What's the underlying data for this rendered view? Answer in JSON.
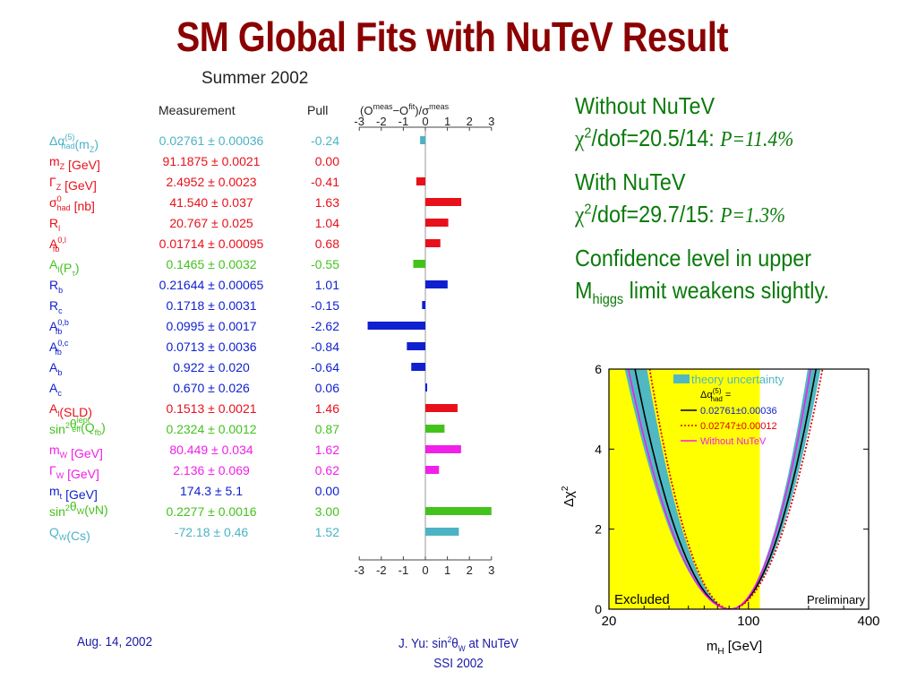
{
  "slide": {
    "title": "SM Global Fits with NuTeV Result",
    "footer_date": "Aug. 14, 2002",
    "footer_center_line1_pre": "J. Yu: sin",
    "footer_center_line1_sup": "2",
    "footer_center_line1_theta": "θ",
    "footer_center_line1_sub": "W",
    "footer_center_line1_post": " at NuTeV",
    "footer_center_line2": "SSI 2002"
  },
  "notes": {
    "without_label": "Without NuTeV",
    "without_chi": "χ",
    "without_sup": "2",
    "without_dof": "/dof=20.5/14: ",
    "without_p": "P=11.4%",
    "with_label": "With NuTeV",
    "with_chi": "χ",
    "with_sup": "2",
    "with_dof": "/dof=29.7/15: ",
    "with_p": "P=1.3%",
    "conf_line1": "Confidence level in upper",
    "conf_m": "M",
    "conf_sub": "higgs",
    "conf_line2": " limit weakens slightly."
  },
  "colors": {
    "title": "#8b0000",
    "notes": "#0b7a0b",
    "cyan": "#4cb3c4",
    "red": "#e8101a",
    "green": "#44c21c",
    "blue": "#1020d0",
    "magenta": "#f020e8",
    "yellow": "#ffff00",
    "teal_band": "#4fb8c2"
  },
  "chart_data": [
    {
      "type": "bar",
      "title": "Summer 2002",
      "col_measurement": "Measurement",
      "col_pull": "Pull",
      "xlabel": "(O^meas−O^fit)/σ^meas",
      "xlim": [
        -3,
        3
      ],
      "x_ticks": [
        "-3",
        "-2",
        "-1",
        "0",
        "1",
        "2",
        "3"
      ],
      "rows": [
        {
          "name": "Δα",
          "sup": "(5)",
          "sub": "had",
          "tail": "(m",
          "tail_sub": "Z",
          "tail_end": ")",
          "measurement": "0.02761 ± 0.00036",
          "pull": "-0.24",
          "value": -0.24,
          "color": "#4cb3c4"
        },
        {
          "name": "m",
          "sub": "Z",
          "tail": " [GeV]",
          "measurement": "91.1875 ± 0.0021",
          "pull": "0.00",
          "value": 0.0,
          "color": "#e8101a"
        },
        {
          "name": "Γ",
          "sub": "Z",
          "tail": " [GeV]",
          "measurement": "2.4952 ± 0.0023",
          "pull": "-0.41",
          "value": -0.41,
          "color": "#e8101a"
        },
        {
          "name": "σ",
          "sup": "0",
          "sub": "had",
          "tail": " [nb]",
          "measurement": "41.540 ± 0.037",
          "pull": "1.63",
          "value": 1.63,
          "color": "#e8101a"
        },
        {
          "name": "R",
          "sub": "l",
          "measurement": "20.767 ± 0.025",
          "pull": "1.04",
          "value": 1.04,
          "color": "#e8101a"
        },
        {
          "name": "A",
          "sup": "0,l",
          "sub": "fb",
          "measurement": "0.01714 ± 0.00095",
          "pull": "0.68",
          "value": 0.68,
          "color": "#e8101a"
        },
        {
          "name": "A",
          "sub": "l",
          "tail": "(P",
          "tail_sub": "τ",
          "tail_end": ")",
          "measurement": "0.1465 ± 0.0032",
          "pull": "-0.55",
          "value": -0.55,
          "color": "#44c21c"
        },
        {
          "name": "R",
          "sub": "b",
          "measurement": "0.21644 ± 0.00065",
          "pull": "1.01",
          "value": 1.01,
          "color": "#1020d0"
        },
        {
          "name": "R",
          "sub": "c",
          "measurement": "0.1718 ± 0.0031",
          "pull": "-0.15",
          "value": -0.15,
          "color": "#1020d0"
        },
        {
          "name": "A",
          "sup": "0,b",
          "sub": "fb",
          "measurement": "0.0995 ± 0.0017",
          "pull": "-2.62",
          "value": -2.62,
          "color": "#1020d0"
        },
        {
          "name": "A",
          "sup": "0,c",
          "sub": "fb",
          "measurement": "0.0713 ± 0.0036",
          "pull": "-0.84",
          "value": -0.84,
          "color": "#1020d0"
        },
        {
          "name": "A",
          "sub": "b",
          "measurement": "0.922 ± 0.020",
          "pull": "-0.64",
          "value": -0.64,
          "color": "#1020d0"
        },
        {
          "name": "A",
          "sub": "c",
          "measurement": "0.670 ± 0.026",
          "pull": "0.06",
          "value": 0.06,
          "color": "#1020d0"
        },
        {
          "name": "A",
          "sub": "l",
          "tail": "(SLD)",
          "measurement": "0.1513 ± 0.0021",
          "pull": "1.46",
          "value": 1.46,
          "color": "#e8101a"
        },
        {
          "name": "sin",
          "sup": "2",
          "name2": "θ",
          "sup2": "lept",
          "sub2": "eff",
          "tail": "(Q",
          "tail_sub": "fb",
          "tail_end": ")",
          "measurement": "0.2324 ± 0.0012",
          "pull": "0.87",
          "value": 0.87,
          "color": "#44c21c"
        },
        {
          "name": "m",
          "sub": "W",
          "tail": " [GeV]",
          "measurement": "80.449 ± 0.034",
          "pull": "1.62",
          "value": 1.62,
          "color": "#f020e8"
        },
        {
          "name": "Γ",
          "sub": "W",
          "tail": " [GeV]",
          "measurement": "2.136 ± 0.069",
          "pull": "0.62",
          "value": 0.62,
          "color": "#f020e8"
        },
        {
          "name": "m",
          "sub": "t",
          "tail": " [GeV]",
          "measurement": "174.3 ± 5.1",
          "pull": "0.00",
          "value": 0.0,
          "color": "#1020d0"
        },
        {
          "name": "sin",
          "sup": "2",
          "name2": "θ",
          "sub2": "W",
          "tail": "(νN)",
          "measurement": "0.2277 ± 0.0016",
          "pull": "3.00",
          "value": 3.0,
          "color": "#44c21c"
        },
        {
          "name": "Q",
          "sub": "W",
          "tail": "(Cs)",
          "measurement": "-72.18 ± 0.46",
          "pull": "1.52",
          "value": 1.52,
          "color": "#4cb3c4"
        }
      ]
    },
    {
      "type": "line",
      "xlabel": "m",
      "xlabel_sub": "H",
      "xlabel_unit": " [GeV]",
      "ylabel": "Δχ",
      "ylabel_sup": "2",
      "x_scale": "log",
      "xlim": [
        20,
        400
      ],
      "ylim": [
        0,
        6
      ],
      "x_ticks": [
        20,
        100,
        400
      ],
      "y_ticks": [
        0,
        2,
        4,
        6
      ],
      "excluded_label": "Excluded",
      "excluded_range": [
        20,
        114
      ],
      "preliminary_label": "Preliminary",
      "legend": {
        "band_label": "theory uncertainty",
        "header": "Δα",
        "header_sup": "(5)",
        "header_sub": "had",
        "header_end": " =",
        "entries": [
          "0.02761±0.00036",
          "0.02747±0.00012",
          "Without NuTeV"
        ]
      },
      "series": [
        {
          "name": "0.02761±0.00036",
          "style": "solid",
          "color": "#000000",
          "min_x": 81,
          "x_at_6": [
            27,
            218
          ]
        },
        {
          "name": "0.02747±0.00012",
          "style": "dotted",
          "color": "#e00000",
          "min_x": 81,
          "x_at_6": [
            32,
            235
          ]
        },
        {
          "name": "Without NuTeV",
          "style": "solid",
          "color": "#f020e8",
          "min_x": 81,
          "x_at_6": [
            25,
            205
          ]
        }
      ],
      "band": {
        "name": "theory uncertainty",
        "color": "#4fb8c2",
        "min_x": [
          76,
          86
        ],
        "x_at_6_low": [
          24,
          31
        ],
        "x_at_6_high": [
          198,
          230
        ]
      }
    }
  ]
}
